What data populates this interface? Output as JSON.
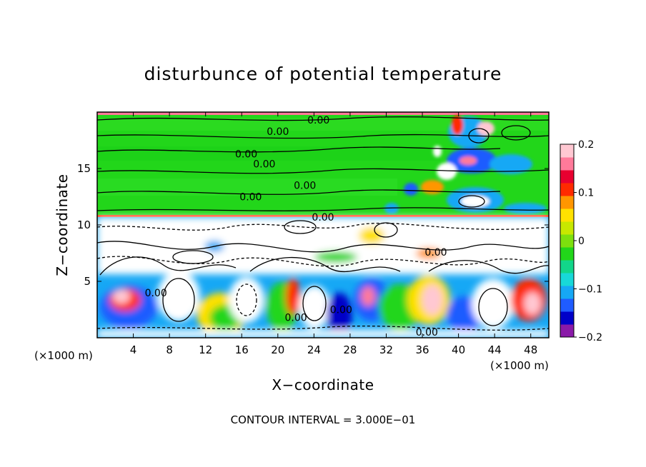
{
  "chart_data": {
    "type": "heatmap",
    "title": "disturbunce of potential temperature",
    "xlabel": "X−coordinate",
    "ylabel": "Z−coordinate",
    "x_unit_left": "(×1000 m)",
    "x_unit_right": "(×1000 m)",
    "xlim": [
      0,
      50
    ],
    "ylim": [
      0,
      20
    ],
    "xticks": [
      4,
      8,
      12,
      16,
      20,
      24,
      28,
      32,
      36,
      40,
      44,
      48
    ],
    "yticks": [
      5,
      10,
      15
    ],
    "contour_interval_text": "CONTOUR INTERVAL = 3.000E−01",
    "contour_label": "0.00",
    "contour_label_positions": [
      [
        24.5,
        19.3
      ],
      [
        20.0,
        18.3
      ],
      [
        16.5,
        16.3
      ],
      [
        18.5,
        15.4
      ],
      [
        23.0,
        13.5
      ],
      [
        17.0,
        12.5
      ],
      [
        25.0,
        10.7
      ],
      [
        37.5,
        7.6
      ],
      [
        36.5,
        0.5
      ],
      [
        6.5,
        4.0
      ],
      [
        22.0,
        1.8
      ],
      [
        27.0,
        2.5
      ]
    ],
    "colorbar": {
      "min": -0.2,
      "max": 0.2,
      "ticks": [
        0.2,
        0.1,
        0,
        -0.1,
        -0.2
      ],
      "tick_labels": [
        "0.2",
        "0.1",
        "0",
        "−0.1",
        "−0.2"
      ],
      "colors": [
        "#8a1aa8",
        "#0000c8",
        "#1f5cff",
        "#16a8f5",
        "#18d8d8",
        "#12d68a",
        "#22d61a",
        "#7de00e",
        "#c8e800",
        "#ffe100",
        "#ff9600",
        "#ff2a00",
        "#e80030",
        "#ff7a9a",
        "#ffc8d2"
      ]
    },
    "regions": {
      "upper_layer": {
        "z_range": [
          10.7,
          20
        ],
        "value": 0.0
      },
      "lower_layer": {
        "z_range": [
          0,
          10.7
        ],
        "value_range": [
          -0.2,
          0.2
        ]
      }
    }
  }
}
